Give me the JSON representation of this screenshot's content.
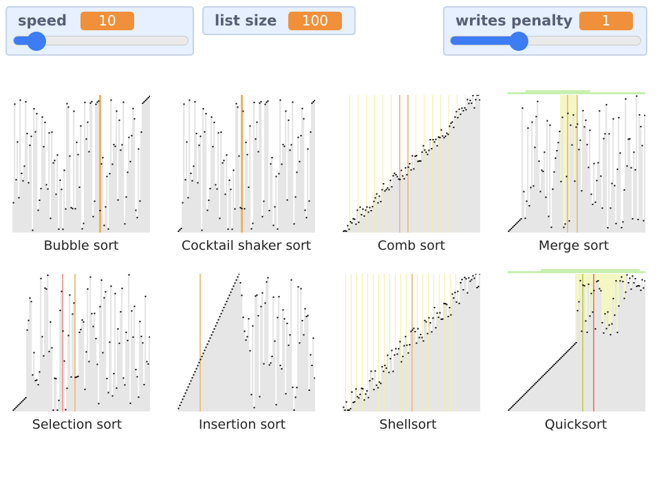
{
  "monitors": {
    "speed": {
      "label": "speed",
      "value": "10",
      "slider_fraction": 0.13
    },
    "list_size": {
      "label": "list size",
      "value": "100"
    },
    "writes_penalty": {
      "label": "writes penalty",
      "value": "1",
      "slider_fraction": 0.36
    }
  },
  "algorithms": [
    {
      "name": "Bubble sort",
      "seed": 3,
      "sortedPrefix": 0,
      "sortedSuffix": 6,
      "noise": 1.0,
      "highlights": [
        {
          "pos": 0.63,
          "color": "#f0b060",
          "width": 3
        }
      ]
    },
    {
      "name": "Cocktail shaker sort",
      "seed": 3,
      "sortedPrefix": 3,
      "sortedSuffix": 3,
      "noise": 1.0,
      "highlights": [
        {
          "pos": 0.46,
          "color": "#f0b060",
          "width": 3
        }
      ]
    },
    {
      "name": "Comb sort",
      "seed": 7,
      "sortedPrefix": 0,
      "sortedSuffix": 0,
      "noise": 0.12,
      "highlights": [
        {
          "pos": 0.05,
          "color": "#f5ef9a",
          "width": 1
        },
        {
          "pos": 0.11,
          "color": "#f5ef9a",
          "width": 1
        },
        {
          "pos": 0.17,
          "color": "#f5ef9a",
          "width": 1
        },
        {
          "pos": 0.23,
          "color": "#f5ef9a",
          "width": 1
        },
        {
          "pos": 0.29,
          "color": "#f5ef9a",
          "width": 1
        },
        {
          "pos": 0.35,
          "color": "#f5ef9a",
          "width": 1
        },
        {
          "pos": 0.41,
          "color": "#f5ef9a",
          "width": 1
        },
        {
          "pos": 0.47,
          "color": "#f0c080",
          "width": 2
        },
        {
          "pos": 0.53,
          "color": "#f5ef9a",
          "width": 1
        },
        {
          "pos": 0.59,
          "color": "#f5ef9a",
          "width": 1
        },
        {
          "pos": 0.65,
          "color": "#f5ef9a",
          "width": 1
        },
        {
          "pos": 0.71,
          "color": "#f5ef9a",
          "width": 1
        },
        {
          "pos": 0.77,
          "color": "#f5ef9a",
          "width": 1
        },
        {
          "pos": 0.83,
          "color": "#f5ef9a",
          "width": 1
        },
        {
          "pos": 0.89,
          "color": "#f5ef9a",
          "width": 1
        },
        {
          "pos": 0.41,
          "color": "#f0c080",
          "width": 2
        }
      ]
    },
    {
      "name": "Merge sort",
      "seed": 11,
      "sortedPrefix": 10,
      "sortedSuffix": 0,
      "noise": 1.0,
      "topBar": true,
      "highlights": [
        {
          "pos": 0.43,
          "color": "#f0c080",
          "width": 2
        },
        {
          "pos": 0.5,
          "color": "#f0c080",
          "width": 2
        }
      ],
      "band": {
        "from": 0.38,
        "to": 0.5
      }
    },
    {
      "name": "Selection sort",
      "seed": 19,
      "sortedPrefix": 10,
      "sortedSuffix": 0,
      "noise": 1.0,
      "lowStart": true,
      "highlights": [
        {
          "pos": 0.36,
          "color": "#f0a0a0",
          "width": 2
        },
        {
          "pos": 0.45,
          "color": "#f0c080",
          "width": 2
        }
      ]
    },
    {
      "name": "Insertion sort",
      "seed": 23,
      "sortedPrefix": 45,
      "sortedSuffix": 0,
      "noise": 1.0,
      "highlights": [
        {
          "pos": 0.16,
          "color": "#f0c080",
          "width": 2
        }
      ]
    },
    {
      "name": "Shellsort",
      "seed": 29,
      "sortedPrefix": 0,
      "sortedSuffix": 0,
      "noise": 0.18,
      "highlights": [
        {
          "pos": 0.02,
          "color": "#f5ef9a",
          "width": 1
        },
        {
          "pos": 0.06,
          "color": "#f5ef9a",
          "width": 1
        },
        {
          "pos": 0.1,
          "color": "#f5ef9a",
          "width": 1
        },
        {
          "pos": 0.14,
          "color": "#f5ef9a",
          "width": 1
        },
        {
          "pos": 0.18,
          "color": "#f5ef9a",
          "width": 1
        },
        {
          "pos": 0.22,
          "color": "#f5ef9a",
          "width": 1
        },
        {
          "pos": 0.26,
          "color": "#f5ef9a",
          "width": 1
        },
        {
          "pos": 0.3,
          "color": "#f5ef9a",
          "width": 1
        },
        {
          "pos": 0.34,
          "color": "#f5ef9a",
          "width": 1
        },
        {
          "pos": 0.38,
          "color": "#f5ef9a",
          "width": 1
        },
        {
          "pos": 0.42,
          "color": "#f5ef9a",
          "width": 1
        },
        {
          "pos": 0.46,
          "color": "#f5ef9a",
          "width": 1
        },
        {
          "pos": 0.5,
          "color": "#f0c080",
          "width": 2
        },
        {
          "pos": 0.54,
          "color": "#f5ef9a",
          "width": 1
        },
        {
          "pos": 0.58,
          "color": "#f5ef9a",
          "width": 1
        },
        {
          "pos": 0.62,
          "color": "#f5ef9a",
          "width": 1
        },
        {
          "pos": 0.66,
          "color": "#f5ef9a",
          "width": 1
        },
        {
          "pos": 0.7,
          "color": "#f5ef9a",
          "width": 1
        },
        {
          "pos": 0.74,
          "color": "#f5ef9a",
          "width": 1
        },
        {
          "pos": 0.78,
          "color": "#f5ef9a",
          "width": 1
        },
        {
          "pos": 0.82,
          "color": "#f5ef9a",
          "width": 1
        }
      ]
    },
    {
      "name": "Quicksort",
      "seed": 31,
      "sortedPrefix": 50,
      "sortedSuffix": 0,
      "noise": 1.0,
      "topBar": true,
      "quick": true,
      "highlights": [
        {
          "pos": 0.54,
          "color": "#c8d060",
          "width": 2
        },
        {
          "pos": 0.62,
          "color": "#f08080",
          "width": 2
        }
      ],
      "band": {
        "from": 0.49,
        "to": 0.86
      }
    }
  ]
}
